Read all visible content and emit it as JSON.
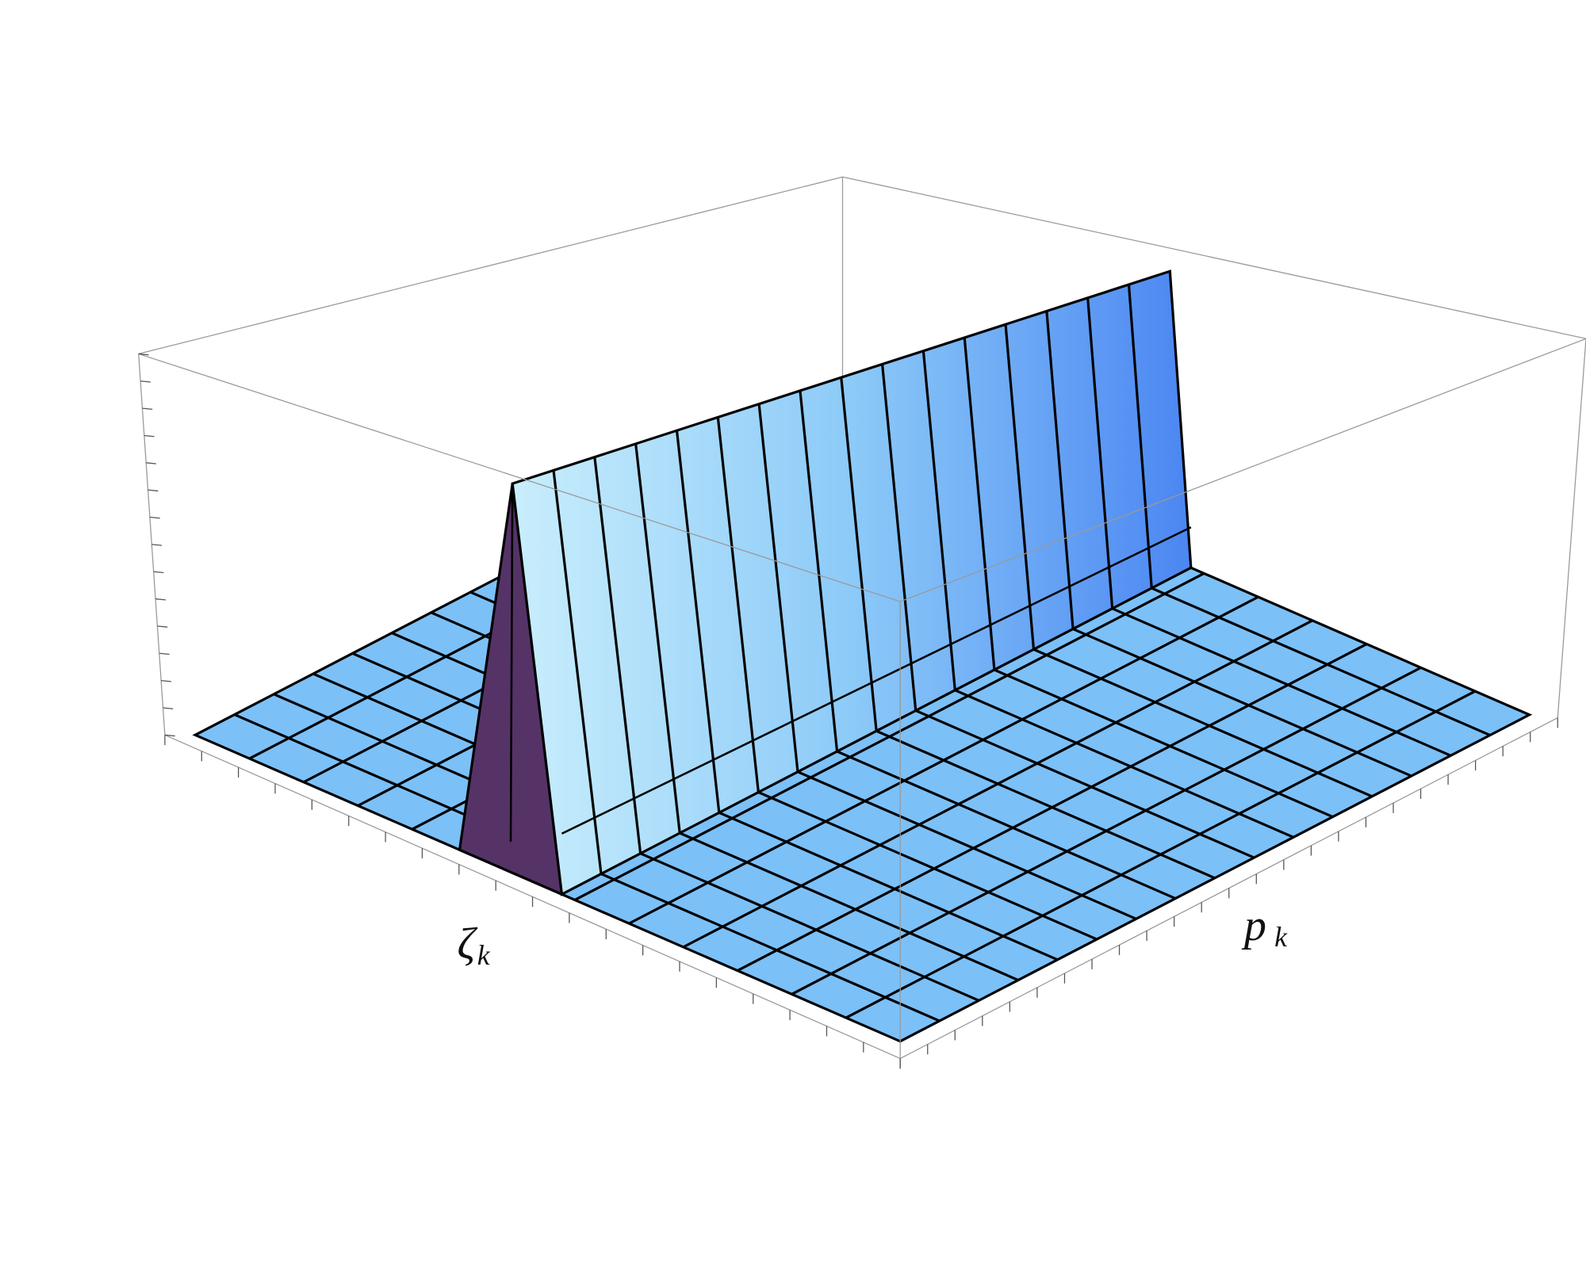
{
  "axes": {
    "x_label": {
      "symbol": "ζ",
      "subscript": "k"
    },
    "y_label": {
      "symbol": "p",
      "subscript": "k"
    }
  }
}
